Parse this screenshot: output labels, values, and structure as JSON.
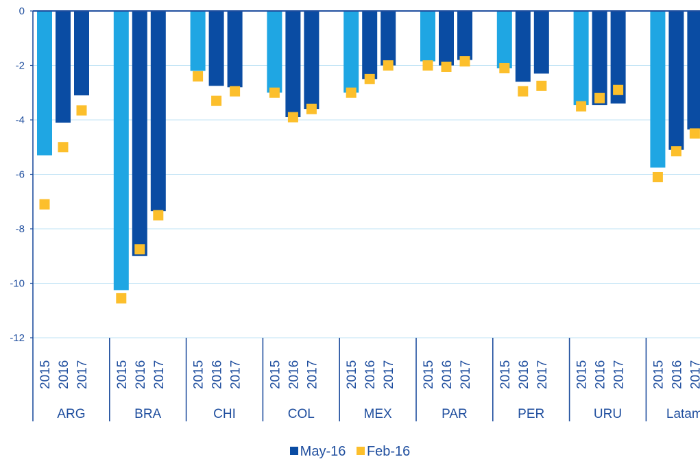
{
  "chart_data": {
    "type": "bar",
    "groups": [
      "ARG",
      "BRA",
      "CHI",
      "COL",
      "MEX",
      "PAR",
      "PER",
      "URU",
      "Latam"
    ],
    "years": [
      "2015",
      "2016",
      "2017"
    ],
    "series": [
      {
        "name": "May-16",
        "kind": "bar",
        "values": [
          [
            -5.3,
            -4.1,
            -3.1
          ],
          [
            -10.25,
            -9.0,
            -7.35
          ],
          [
            -2.2,
            -2.75,
            -2.8
          ],
          [
            -3.0,
            -3.9,
            -3.6
          ],
          [
            -3.0,
            -2.5,
            -2.0
          ],
          [
            -1.85,
            -2.0,
            -1.8
          ],
          [
            -2.1,
            -2.6,
            -2.3
          ],
          [
            -3.45,
            -3.45,
            -3.4
          ],
          [
            -5.75,
            -5.1,
            -4.35
          ]
        ]
      },
      {
        "name": "Feb-16",
        "kind": "marker",
        "values": [
          [
            -7.1,
            -5.0,
            -3.65
          ],
          [
            -10.55,
            -8.75,
            -7.5
          ],
          [
            -2.4,
            -3.3,
            -2.95
          ],
          [
            -3.0,
            -3.9,
            -3.6
          ],
          [
            -3.0,
            -2.5,
            -2.0
          ],
          [
            -2.0,
            -2.05,
            -1.85
          ],
          [
            -2.1,
            -2.95,
            -2.75
          ],
          [
            -3.5,
            -3.2,
            -2.9
          ],
          [
            -6.1,
            -5.15,
            -4.5
          ]
        ]
      }
    ],
    "yticks": [
      0,
      -2,
      -4,
      -6,
      -8,
      -10,
      -12
    ],
    "ylim": [
      -12,
      0
    ],
    "grid": true,
    "legend_position": "bottom",
    "colors": {
      "bar_2015": "#1fa6e3",
      "bar_other": "#0a4ca3",
      "marker": "#fcbf2c",
      "axis": "#1f4e9e",
      "grid": "#bfe3f5",
      "text": "#1f4e9e"
    }
  }
}
